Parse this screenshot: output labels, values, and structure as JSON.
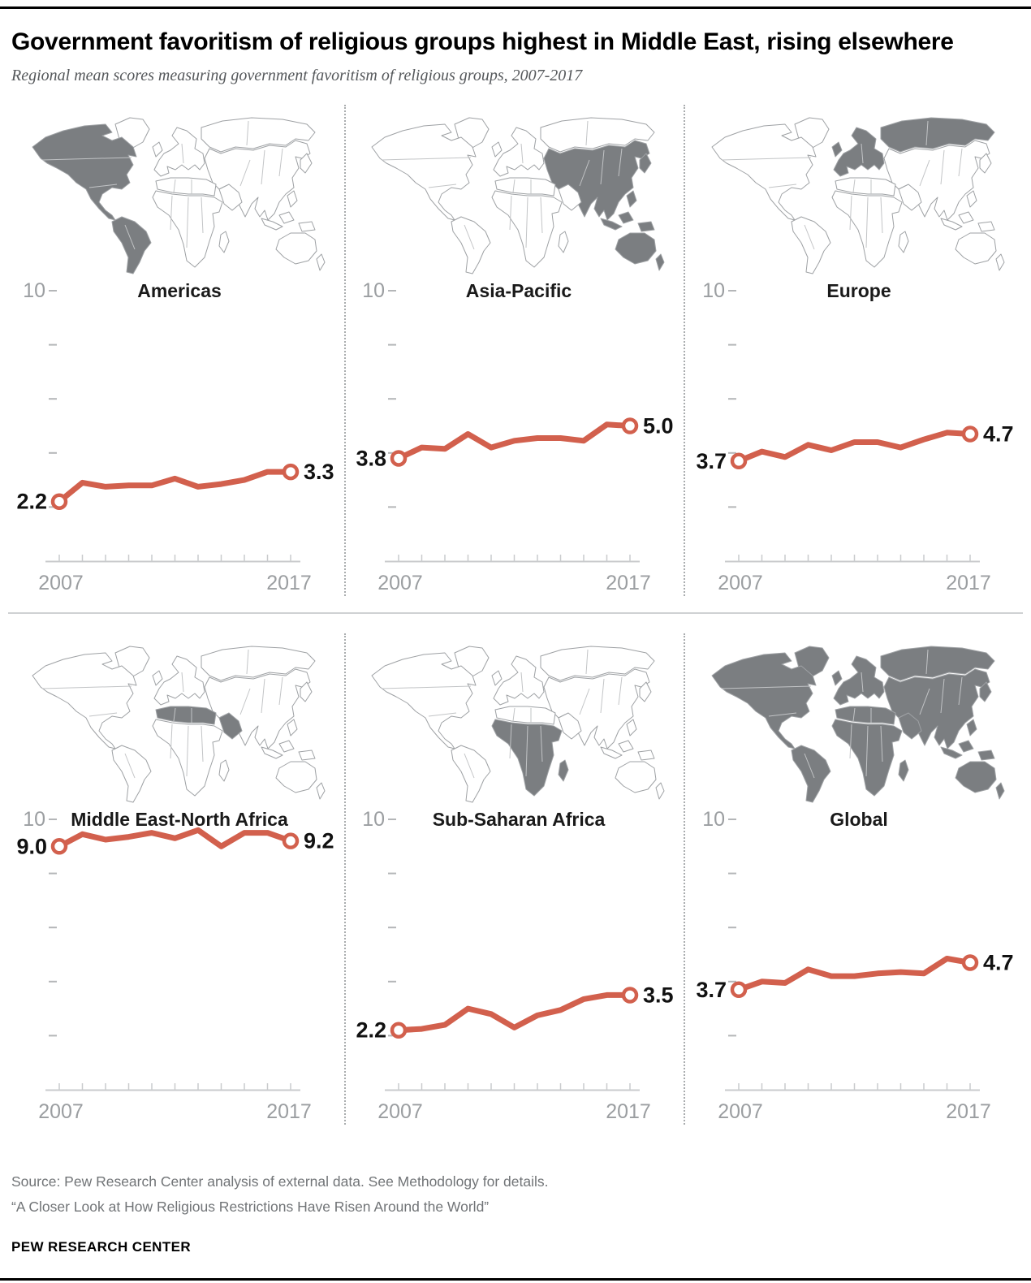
{
  "header": {
    "title": "Government favoritism of religious groups highest in Middle East, rising elsewhere",
    "subtitle": "Regional mean scores measuring government favoritism of religious groups, 2007-2017"
  },
  "axis": {
    "y_top_label": "10",
    "y_ticks": [
      10,
      8,
      6,
      4,
      2
    ],
    "ylim": [
      0,
      10
    ],
    "x_start_label": "2007",
    "x_end_label": "2017"
  },
  "colors": {
    "line": "#d2604d",
    "marker_fill": "#ffffff",
    "map_highlight": "#7b7e81",
    "map_base": "#ffffff",
    "map_border": "#9ea1a4",
    "axis_text": "#9b9ea1",
    "axis_tick": "#c9cbcd",
    "y_dash": "#b4b6b8",
    "value_label": "#111111",
    "title_text": "#1a1a1a"
  },
  "chart_data": [
    {
      "type": "line",
      "id": "americas",
      "title": "Americas",
      "x": [
        2007,
        2008,
        2009,
        2010,
        2011,
        2012,
        2013,
        2014,
        2015,
        2016,
        2017
      ],
      "values": [
        2.2,
        2.9,
        2.75,
        2.8,
        2.8,
        3.05,
        2.75,
        2.85,
        3.0,
        3.3,
        3.3
      ],
      "start_label": "2.2",
      "end_label": "3.3",
      "ylim": [
        0,
        10
      ],
      "highlight": [
        "north_america",
        "south_america"
      ]
    },
    {
      "type": "line",
      "id": "asia-pacific",
      "title": "Asia-Pacific",
      "x": [
        2007,
        2008,
        2009,
        2010,
        2011,
        2012,
        2013,
        2014,
        2015,
        2016,
        2017
      ],
      "values": [
        3.8,
        4.2,
        4.15,
        4.7,
        4.2,
        4.45,
        4.55,
        4.55,
        4.45,
        5.05,
        5.0
      ],
      "start_label": "3.8",
      "end_label": "5.0",
      "ylim": [
        0,
        10
      ],
      "highlight": [
        "asia",
        "sea_islands",
        "japan",
        "australia",
        "new_zealand"
      ]
    },
    {
      "type": "line",
      "id": "europe",
      "title": "Europe",
      "x": [
        2007,
        2008,
        2009,
        2010,
        2011,
        2012,
        2013,
        2014,
        2015,
        2016,
        2017
      ],
      "values": [
        3.7,
        4.05,
        3.85,
        4.3,
        4.1,
        4.4,
        4.4,
        4.2,
        4.5,
        4.75,
        4.7
      ],
      "start_label": "3.7",
      "end_label": "4.7",
      "ylim": [
        0,
        10
      ],
      "highlight": [
        "europe",
        "uk",
        "russia"
      ]
    },
    {
      "type": "line",
      "id": "middle-east-north-africa",
      "title": "Middle East-North Africa",
      "x": [
        2007,
        2008,
        2009,
        2010,
        2011,
        2012,
        2013,
        2014,
        2015,
        2016,
        2017
      ],
      "values": [
        9.0,
        9.45,
        9.25,
        9.35,
        9.5,
        9.3,
        9.6,
        9.0,
        9.5,
        9.5,
        9.2
      ],
      "start_label": "9.0",
      "end_label": "9.2",
      "ylim": [
        0,
        10
      ],
      "highlight": [
        "mena"
      ]
    },
    {
      "type": "line",
      "id": "sub-saharan-africa",
      "title": "Sub-Saharan Africa",
      "x": [
        2007,
        2008,
        2009,
        2010,
        2011,
        2012,
        2013,
        2014,
        2015,
        2016,
        2017
      ],
      "values": [
        2.2,
        2.25,
        2.4,
        3.0,
        2.8,
        2.3,
        2.75,
        2.95,
        3.35,
        3.5,
        3.5
      ],
      "start_label": "2.2",
      "end_label": "3.5",
      "ylim": [
        0,
        10
      ],
      "highlight": [
        "sub_saharan",
        "madagascar"
      ]
    },
    {
      "type": "line",
      "id": "global",
      "title": "Global",
      "x": [
        2007,
        2008,
        2009,
        2010,
        2011,
        2012,
        2013,
        2014,
        2015,
        2016,
        2017
      ],
      "values": [
        3.7,
        4.0,
        3.95,
        4.45,
        4.2,
        4.2,
        4.3,
        4.35,
        4.3,
        4.85,
        4.7
      ],
      "start_label": "3.7",
      "end_label": "4.7",
      "ylim": [
        0,
        10
      ],
      "highlight": [
        "greenland",
        "north_america",
        "south_america",
        "europe",
        "uk",
        "russia",
        "asia",
        "mena",
        "sub_saharan",
        "madagascar",
        "sea_islands",
        "japan",
        "australia",
        "new_zealand"
      ]
    }
  ],
  "footer": {
    "source": "Source: Pew Research Center analysis of external data. See Methodology for details.",
    "report": "“A Closer Look at How Religious Restrictions Have Risen Around the World”",
    "brand": "PEW RESEARCH CENTER"
  }
}
